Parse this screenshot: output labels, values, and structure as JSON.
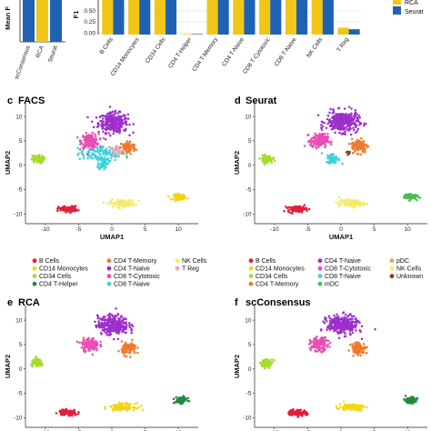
{
  "palette": {
    "B Cells": "#e0203c",
    "CD14 Monocytes": "#f2d614",
    "CD34 Cells": "#a4dc2a",
    "CD4 T-Helper": "#1f8a3c",
    "CD4 T-Memory": "#ee7a2a",
    "CD4 T-Naive": "#9d2fcb",
    "CD8 T-Cytotoxic": "#e84fb3",
    "CD8 T-Naive": "#3fd1d8",
    "NK Cells": "#f5ea6a",
    "T Reg": "#f3a6b4",
    "mDC": "#4bbd52",
    "pDC": "#c9b24f",
    "Unknown": "#7a3f1e",
    "RCA": "#f2c617",
    "scConsensus": "#1f62b3",
    "Seurat": "#1f62b3"
  },
  "top_left": {
    "ylabel": "Mean F",
    "categories": [
      "scConsensus",
      "RCA",
      "Seurat"
    ],
    "colors": [
      "#1f62b3",
      "#f2c617",
      "#1f62b3"
    ]
  },
  "top_right": {
    "ylabel": "F1",
    "yticks": [
      "0.50",
      "0.25",
      "0.00"
    ],
    "legend_labels": [
      "RCA",
      "Seurat"
    ],
    "categories": [
      "B Cells",
      "CD14 Monocytes",
      "CD34 Cells",
      "CD4 T-Helper",
      "CD4 T-Memory",
      "CD4 T-Naive",
      "CD8 T-Cytotoxic",
      "CD8 T-Naive",
      "NK Cells",
      "T Reg"
    ]
  },
  "panels": {
    "c": {
      "tag": "c",
      "title": "FACS"
    },
    "d": {
      "tag": "d",
      "title": "Seurat"
    },
    "e": {
      "tag": "e",
      "title": "RCA"
    },
    "f": {
      "tag": "f",
      "title": "scConsensus"
    }
  },
  "umap_axes": {
    "xlabel": "UMAP1",
    "ylabel": "UMAP2",
    "xticks": [
      -10,
      -5,
      0,
      5,
      10
    ],
    "yticks": [
      10,
      5,
      0,
      -5,
      -10
    ],
    "xlim": [
      -13,
      13
    ],
    "ylim": [
      -12,
      13
    ]
  },
  "legend_facs": [
    {
      "label": "B Cells",
      "color": "#e0203c"
    },
    {
      "label": "CD4 T-Memory",
      "color": "#ee7a2a"
    },
    {
      "label": "NK Cells",
      "color": "#f5ea6a"
    },
    {
      "label": "CD14 Monocytes",
      "color": "#f2d614"
    },
    {
      "label": "CD4 T-Naive",
      "color": "#9d2fcb"
    },
    {
      "label": "T Reg",
      "color": "#f3a6b4"
    },
    {
      "label": "CD34 Cells",
      "color": "#a4dc2a"
    },
    {
      "label": "CD8 T-Cytotoxic",
      "color": "#e84fb3"
    },
    {
      "label": "",
      "color": ""
    },
    {
      "label": "CD4 T-Helper",
      "color": "#1f8a3c"
    },
    {
      "label": "CD8 T-Naive",
      "color": "#3fd1d8"
    },
    {
      "label": "",
      "color": ""
    }
  ],
  "legend_seurat": [
    {
      "label": "B Cells",
      "color": "#e0203c"
    },
    {
      "label": "CD4 T-Naive",
      "color": "#9d2fcb"
    },
    {
      "label": "pDC",
      "color": "#c9b24f"
    },
    {
      "label": "CD14 Monocytes",
      "color": "#f2d614"
    },
    {
      "label": "CD8 T-Cytotoxic",
      "color": "#e84fb3"
    },
    {
      "label": "NK Cells",
      "color": "#f5ea6a"
    },
    {
      "label": "CD34 Cells",
      "color": "#a4dc2a"
    },
    {
      "label": "CD8 T-Naive",
      "color": "#3fd1d8"
    },
    {
      "label": "Unknown",
      "color": "#7a3f1e"
    },
    {
      "label": "CD4 T-Memory",
      "color": "#ee7a2a"
    },
    {
      "label": "mDC",
      "color": "#4bbd52"
    },
    {
      "label": "",
      "color": ""
    }
  ],
  "chart_data": [
    {
      "type": "bar",
      "title": "",
      "ylabel": "Mean F",
      "categories": [
        "scConsensus",
        "RCA",
        "Seurat"
      ],
      "values": [
        0.62,
        0.6,
        0.61
      ],
      "ylim": [
        0,
        0.7
      ]
    },
    {
      "type": "bar",
      "title": "",
      "ylabel": "F1",
      "categories": [
        "B Cells",
        "CD14 Monocytes",
        "CD34 Cells",
        "CD4 T-Helper",
        "CD4 T-Memory",
        "CD4 T-Naive",
        "CD8 T-Cytotoxic",
        "CD8 T-Naive",
        "NK Cells",
        "T Reg"
      ],
      "series": [
        {
          "name": "RCA",
          "values": [
            0.65,
            0.65,
            0.65,
            0.0,
            0.65,
            0.65,
            0.65,
            0.65,
            0.65,
            0.13
          ]
        },
        {
          "name": "Seurat",
          "values": [
            0.65,
            0.65,
            0.65,
            0.0,
            0.65,
            0.65,
            0.65,
            0.65,
            0.65,
            0.1
          ]
        }
      ],
      "ylim": [
        0,
        0.65
      ],
      "legend": "top-right"
    },
    {
      "type": "scatter",
      "title": "FACS",
      "xlabel": "UMAP1",
      "ylabel": "UMAP2",
      "xlim": [
        -13,
        13
      ],
      "ylim": [
        -12,
        13
      ],
      "clusters": [
        {
          "label": "CD8 T-Naive",
          "x": -1.5,
          "y": 2.5,
          "sx": 3.5,
          "sy": 1.6,
          "n": 120
        },
        {
          "label": "CD4 T-Naive",
          "x": 0.2,
          "y": 8.7,
          "sx": 2.2,
          "sy": 2.0,
          "n": 320
        },
        {
          "label": "CD8 T-Cytotoxic",
          "x": -3.3,
          "y": 5.0,
          "sx": 1.3,
          "sy": 1.4,
          "n": 160
        },
        {
          "label": "CD4 T-Memory",
          "x": 2.4,
          "y": 3.6,
          "sx": 1.2,
          "sy": 1.4,
          "n": 90
        },
        {
          "label": "CD8 T-Naive",
          "x": -1.3,
          "y": 0.5,
          "sx": 0.7,
          "sy": 1.4,
          "n": 60
        },
        {
          "label": "CD34 Cells",
          "x": -11.2,
          "y": 1.2,
          "sx": 0.9,
          "sy": 0.8,
          "n": 70
        },
        {
          "label": "B Cells",
          "x": -6.6,
          "y": -9.0,
          "sx": 1.4,
          "sy": 0.6,
          "n": 110
        },
        {
          "label": "NK Cells",
          "x": 1.6,
          "y": -7.8,
          "sx": 1.9,
          "sy": 0.7,
          "n": 110
        },
        {
          "label": "CD14 Monocytes",
          "x": 10.2,
          "y": -6.5,
          "sx": 0.9,
          "sy": 0.6,
          "n": 80
        },
        {
          "label": "T Reg",
          "x": 0.8,
          "y": 3.0,
          "sx": 1.0,
          "sy": 0.8,
          "n": 30
        }
      ]
    },
    {
      "type": "scatter",
      "title": "Seurat",
      "xlabel": "UMAP1",
      "ylabel": "UMAP2",
      "xlim": [
        -13,
        13
      ],
      "ylim": [
        -12,
        13
      ],
      "clusters": [
        {
          "label": "CD4 T-Naive",
          "x": 0.2,
          "y": 8.9,
          "sx": 2.4,
          "sy": 2.1,
          "n": 340
        },
        {
          "label": "CD8 T-Cytotoxic",
          "x": -3.3,
          "y": 5.0,
          "sx": 1.3,
          "sy": 1.4,
          "n": 160
        },
        {
          "label": "CD4 T-Memory",
          "x": 2.8,
          "y": 4.0,
          "sx": 1.2,
          "sy": 1.4,
          "n": 130
        },
        {
          "label": "CD8 T-Naive",
          "x": -1.2,
          "y": 1.4,
          "sx": 1.0,
          "sy": 1.0,
          "n": 70
        },
        {
          "label": "CD34 Cells",
          "x": -11.2,
          "y": 1.2,
          "sx": 0.9,
          "sy": 0.8,
          "n": 70
        },
        {
          "label": "B Cells",
          "x": -6.6,
          "y": -9.0,
          "sx": 1.4,
          "sy": 0.6,
          "n": 110
        },
        {
          "label": "NK Cells",
          "x": 1.6,
          "y": -7.8,
          "sx": 1.9,
          "sy": 0.7,
          "n": 110
        },
        {
          "label": "mDC",
          "x": 10.4,
          "y": -6.4,
          "sx": 0.9,
          "sy": 0.6,
          "n": 90
        },
        {
          "label": "Unknown",
          "x": 1.1,
          "y": 2.6,
          "sx": 0.4,
          "sy": 0.4,
          "n": 10
        }
      ]
    },
    {
      "type": "scatter",
      "title": "RCA",
      "xlabel": "UMAP1",
      "ylabel": "UMAP2",
      "xlim": [
        -13,
        13
      ],
      "ylim": [
        -12,
        13
      ],
      "clusters": [
        {
          "label": "CD4 T-Naive",
          "x": 0.2,
          "y": 9.0,
          "sx": 2.3,
          "sy": 1.9,
          "n": 320
        },
        {
          "label": "CD8 T-Cytotoxic",
          "x": -3.3,
          "y": 5.0,
          "sx": 1.3,
          "sy": 1.3,
          "n": 150
        },
        {
          "label": "CD4 T-Memory",
          "x": 2.6,
          "y": 4.2,
          "sx": 1.1,
          "sy": 1.3,
          "n": 90
        },
        {
          "label": "CD34 Cells",
          "x": -11.2,
          "y": 1.2,
          "sx": 0.9,
          "sy": 0.8,
          "n": 70
        },
        {
          "label": "B Cells",
          "x": -6.6,
          "y": -9.0,
          "sx": 1.4,
          "sy": 0.6,
          "n": 110
        },
        {
          "label": "CD14 Monocytes",
          "x": 1.6,
          "y": -7.8,
          "sx": 1.9,
          "sy": 0.7,
          "n": 110
        },
        {
          "label": "CD4 T-Helper",
          "x": 10.4,
          "y": -6.4,
          "sx": 0.9,
          "sy": 0.6,
          "n": 90
        }
      ]
    },
    {
      "type": "scatter",
      "title": "scConsensus",
      "xlabel": "UMAP1",
      "ylabel": "UMAP2",
      "xlim": [
        -13,
        13
      ],
      "ylim": [
        -12,
        13
      ],
      "clusters": [
        {
          "label": "CD4 T-Naive",
          "x": 0.2,
          "y": 9.0,
          "sx": 2.3,
          "sy": 1.9,
          "n": 320
        },
        {
          "label": "CD8 T-Cytotoxic",
          "x": -3.3,
          "y": 5.0,
          "sx": 1.3,
          "sy": 1.3,
          "n": 150
        },
        {
          "label": "CD4 T-Memory",
          "x": 2.6,
          "y": 4.2,
          "sx": 1.1,
          "sy": 1.3,
          "n": 90
        },
        {
          "label": "CD34 Cells",
          "x": -11.2,
          "y": 1.2,
          "sx": 0.9,
          "sy": 0.8,
          "n": 70
        },
        {
          "label": "B Cells",
          "x": -6.6,
          "y": -9.0,
          "sx": 1.4,
          "sy": 0.6,
          "n": 110
        },
        {
          "label": "CD14 Monocytes",
          "x": 1.6,
          "y": -7.8,
          "sx": 1.9,
          "sy": 0.7,
          "n": 110
        },
        {
          "label": "CD4 T-Helper",
          "x": 10.4,
          "y": -6.4,
          "sx": 0.9,
          "sy": 0.6,
          "n": 90
        }
      ]
    }
  ]
}
